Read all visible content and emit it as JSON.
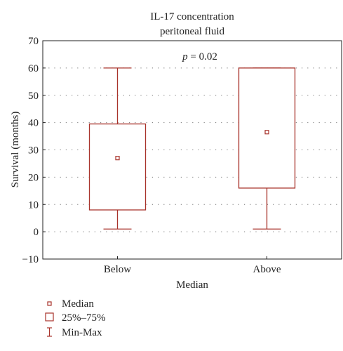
{
  "chart_data": {
    "type": "box",
    "title": [
      "IL-17 concentration",
      "peritoneal fluid"
    ],
    "annotation": {
      "prefix": "p",
      "text": " = 0.02"
    },
    "xlabel": "Median",
    "ylabel": "Survival (months)",
    "ylim": [
      -10,
      70
    ],
    "yticks": [
      -10,
      0,
      10,
      20,
      30,
      40,
      50,
      60,
      70
    ],
    "grid": true,
    "categories": [
      "Below",
      "Above"
    ],
    "boxes": [
      {
        "category": "Below",
        "min": 1,
        "q1": 8,
        "median": 27,
        "q3": 39.5,
        "max": 60
      },
      {
        "category": "Above",
        "min": 1,
        "q1": 16,
        "median": 36.5,
        "q3": 60,
        "max": 60
      }
    ],
    "legend": {
      "position": "bottom-left",
      "items": [
        {
          "symbol": "median",
          "label": "Median"
        },
        {
          "symbol": "box",
          "label": "25%–75%"
        },
        {
          "symbol": "whisker",
          "label": "Min-Max"
        }
      ]
    },
    "colors": {
      "series": "#a8332b",
      "axis": "#222222",
      "grid": "#777777"
    }
  }
}
